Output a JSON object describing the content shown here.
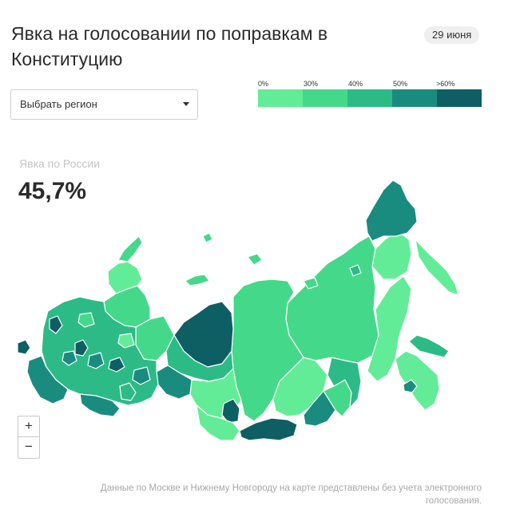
{
  "header": {
    "title": "Явка на голосовании по поправкам в Конституцию",
    "date_badge": "29 июня"
  },
  "region_select": {
    "label": "Выбрать регион",
    "icon": "chevron-down-icon"
  },
  "legend": {
    "ticks": [
      "0%",
      "30%",
      "40%",
      "50%",
      ">60%"
    ],
    "colors": [
      "#63ec97",
      "#44d98a",
      "#2cbb87",
      "#1a8c7f",
      "#0d5f63"
    ]
  },
  "summary": {
    "label": "Явка по России",
    "value": "45,7%"
  },
  "zoom": {
    "in_label": "+",
    "out_label": "−"
  },
  "note": "Данные по Москве и Нижнему Новгороду на карте представлены без учета электронного голосования."
}
